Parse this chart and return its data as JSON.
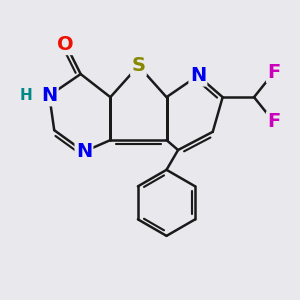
{
  "bg_color": "#e9e9ed",
  "bond_color": "#1a1a1a",
  "bond_width": 1.8,
  "dbo": 0.12,
  "atoms": {
    "O": {
      "color": "#ee1100",
      "fontsize": 14,
      "fontweight": "bold"
    },
    "S": {
      "color": "#888800",
      "fontsize": 14,
      "fontweight": "bold"
    },
    "N": {
      "color": "#0000ee",
      "fontsize": 14,
      "fontweight": "bold"
    },
    "H": {
      "color": "#008888",
      "fontsize": 11,
      "fontweight": "bold"
    },
    "F": {
      "color": "#cc00bb",
      "fontsize": 14,
      "fontweight": "bold"
    }
  },
  "figsize": [
    3.0,
    3.0
  ],
  "dpi": 100,
  "xlim": [
    0.5,
    9.5
  ],
  "ylim": [
    0.8,
    9.2
  ]
}
